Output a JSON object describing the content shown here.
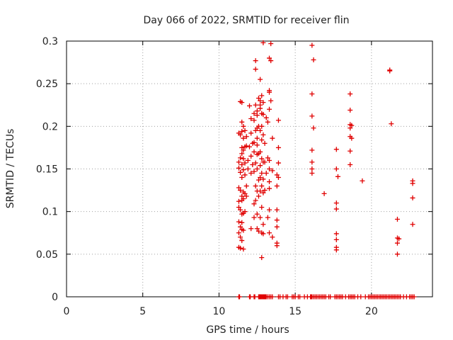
{
  "chart_data": {
    "type": "scatter",
    "title": "Day 066 of 2022, SRMTID for receiver flin",
    "xlabel": "GPS time / hours",
    "ylabel": "SRMTID / TECUs",
    "xlim": [
      0,
      24
    ],
    "ylim": [
      0,
      0.3
    ],
    "x_ticks": [
      0,
      5,
      10,
      15,
      20
    ],
    "y_ticks": [
      0,
      0.05,
      0.1,
      0.15,
      0.2,
      0.25,
      0.3
    ],
    "x_tick_labels": [
      "0",
      "5",
      "10",
      "15",
      "20"
    ],
    "y_tick_labels": [
      "0",
      "0.05",
      "0.1",
      "0.15",
      "0.2",
      "0.25",
      "0.3"
    ],
    "grid": true,
    "marker": "plus",
    "marker_color": "#e00000",
    "series": [
      {
        "name": "",
        "points": [
          [
            11.3,
            0.192
          ],
          [
            11.3,
            0.158
          ],
          [
            11.3,
            0.151
          ],
          [
            11.3,
            0.128
          ],
          [
            11.3,
            0.112
          ],
          [
            11.3,
            0.105
          ],
          [
            11.3,
            0.088
          ],
          [
            11.3,
            0.075
          ],
          [
            11.3,
            0.058
          ],
          [
            11.4,
            0.229
          ],
          [
            11.4,
            0.19
          ],
          [
            11.4,
            0.163
          ],
          [
            11.4,
            0.146
          ],
          [
            11.4,
            0.125
          ],
          [
            11.4,
            0.102
          ],
          [
            11.4,
            0.082
          ],
          [
            11.4,
            0.07
          ],
          [
            11.4,
            0.057
          ],
          [
            11.5,
            0.228
          ],
          [
            11.5,
            0.205
          ],
          [
            11.5,
            0.194
          ],
          [
            11.5,
            0.175
          ],
          [
            11.5,
            0.168
          ],
          [
            11.5,
            0.155
          ],
          [
            11.5,
            0.14
          ],
          [
            11.5,
            0.118
          ],
          [
            11.5,
            0.113
          ],
          [
            11.5,
            0.097
          ],
          [
            11.5,
            0.087
          ],
          [
            11.5,
            0.079
          ],
          [
            11.5,
            0.066
          ],
          [
            11.6,
            0.2
          ],
          [
            11.6,
            0.186
          ],
          [
            11.6,
            0.172
          ],
          [
            11.6,
            0.162
          ],
          [
            11.6,
            0.149
          ],
          [
            11.6,
            0.123
          ],
          [
            11.6,
            0.115
          ],
          [
            11.6,
            0.098
          ],
          [
            11.6,
            0.078
          ],
          [
            11.6,
            0.056
          ],
          [
            11.7,
            0.195
          ],
          [
            11.7,
            0.176
          ],
          [
            11.7,
            0.157
          ],
          [
            11.7,
            0.143
          ],
          [
            11.7,
            0.121
          ],
          [
            11.7,
            0.1
          ],
          [
            11.8,
            0.188
          ],
          [
            11.8,
            0.177
          ],
          [
            11.8,
            0.13
          ],
          [
            11.8,
            0.118
          ],
          [
            11.9,
            0.16
          ],
          [
            11.9,
            0.15
          ],
          [
            12.0,
            0.224
          ],
          [
            12.0,
            0.176
          ],
          [
            12.1,
            0.209
          ],
          [
            12.1,
            0.192
          ],
          [
            12.1,
            0.165
          ],
          [
            12.1,
            0.145
          ],
          [
            12.1,
            0.08
          ],
          [
            12.2,
            0.18
          ],
          [
            12.2,
            0.155
          ],
          [
            12.3,
            0.215
          ],
          [
            12.3,
            0.207
          ],
          [
            12.3,
            0.181
          ],
          [
            12.3,
            0.17
          ],
          [
            12.3,
            0.147
          ],
          [
            12.3,
            0.109
          ],
          [
            12.3,
            0.093
          ],
          [
            12.4,
            0.277
          ],
          [
            12.4,
            0.267
          ],
          [
            12.4,
            0.225
          ],
          [
            12.4,
            0.195
          ],
          [
            12.4,
            0.157
          ],
          [
            12.4,
            0.13
          ],
          [
            12.4,
            0.113
          ],
          [
            12.5,
            0.218
          ],
          [
            12.5,
            0.213
          ],
          [
            12.5,
            0.198
          ],
          [
            12.5,
            0.186
          ],
          [
            12.5,
            0.178
          ],
          [
            12.5,
            0.167
          ],
          [
            12.5,
            0.15
          ],
          [
            12.5,
            0.124
          ],
          [
            12.5,
            0.097
          ],
          [
            12.5,
            0.08
          ],
          [
            12.6,
            0.233
          ],
          [
            12.6,
            0.2
          ],
          [
            12.6,
            0.168
          ],
          [
            12.6,
            0.137
          ],
          [
            12.6,
            0.118
          ],
          [
            12.6,
            0.077
          ],
          [
            12.7,
            0.255
          ],
          [
            12.7,
            0.23
          ],
          [
            12.7,
            0.225
          ],
          [
            12.7,
            0.221
          ],
          [
            12.7,
            0.195
          ],
          [
            12.7,
            0.17
          ],
          [
            12.7,
            0.154
          ],
          [
            12.7,
            0.14
          ],
          [
            12.7,
            0.124
          ],
          [
            12.7,
            0.093
          ],
          [
            12.8,
            0.236
          ],
          [
            12.8,
            0.215
          ],
          [
            12.8,
            0.2
          ],
          [
            12.8,
            0.184
          ],
          [
            12.8,
            0.162
          ],
          [
            12.8,
            0.145
          ],
          [
            12.8,
            0.13
          ],
          [
            12.8,
            0.105
          ],
          [
            12.8,
            0.075
          ],
          [
            12.8,
            0.046
          ],
          [
            12.9,
            0.298
          ],
          [
            12.9,
            0.228
          ],
          [
            12.9,
            0.214
          ],
          [
            12.9,
            0.19
          ],
          [
            12.9,
            0.158
          ],
          [
            12.9,
            0.138
          ],
          [
            12.9,
            0.122
          ],
          [
            12.9,
            0.085
          ],
          [
            12.9,
            0.074
          ],
          [
            13.0,
            0.18
          ],
          [
            13.0,
            0.158
          ],
          [
            13.0,
            0.125
          ],
          [
            13.1,
            0.21
          ],
          [
            13.1,
            0.145
          ],
          [
            13.2,
            0.205
          ],
          [
            13.2,
            0.163
          ],
          [
            13.2,
            0.093
          ],
          [
            13.3,
            0.28
          ],
          [
            13.3,
            0.242
          ],
          [
            13.3,
            0.24
          ],
          [
            13.3,
            0.22
          ],
          [
            13.3,
            0.16
          ],
          [
            13.3,
            0.15
          ],
          [
            13.3,
            0.135
          ],
          [
            13.3,
            0.127
          ],
          [
            13.3,
            0.102
          ],
          [
            13.3,
            0.075
          ],
          [
            13.4,
            0.297
          ],
          [
            13.4,
            0.277
          ],
          [
            13.4,
            0.23
          ],
          [
            13.5,
            0.186
          ],
          [
            13.5,
            0.148
          ],
          [
            13.5,
            0.07
          ],
          [
            13.8,
            0.143
          ],
          [
            13.8,
            0.13
          ],
          [
            13.8,
            0.102
          ],
          [
            13.8,
            0.09
          ],
          [
            13.8,
            0.082
          ],
          [
            13.8,
            0.063
          ],
          [
            13.8,
            0.06
          ],
          [
            13.9,
            0.207
          ],
          [
            13.9,
            0.175
          ],
          [
            13.9,
            0.157
          ],
          [
            13.9,
            0.14
          ],
          [
            16.1,
            0.295
          ],
          [
            16.1,
            0.238
          ],
          [
            16.1,
            0.212
          ],
          [
            16.1,
            0.172
          ],
          [
            16.1,
            0.158
          ],
          [
            16.1,
            0.15
          ],
          [
            16.1,
            0.145
          ],
          [
            16.2,
            0.278
          ],
          [
            16.2,
            0.198
          ],
          [
            16.9,
            0.121
          ],
          [
            17.7,
            0.173
          ],
          [
            17.7,
            0.15
          ],
          [
            17.7,
            0.11
          ],
          [
            17.7,
            0.103
          ],
          [
            17.7,
            0.074
          ],
          [
            17.7,
            0.067
          ],
          [
            17.7,
            0.058
          ],
          [
            17.7,
            0.055
          ],
          [
            17.8,
            0.141
          ],
          [
            18.6,
            0.238
          ],
          [
            18.6,
            0.219
          ],
          [
            18.6,
            0.202
          ],
          [
            18.6,
            0.198
          ],
          [
            18.6,
            0.188
          ],
          [
            18.6,
            0.171
          ],
          [
            18.6,
            0.155
          ],
          [
            18.7,
            0.201
          ],
          [
            18.7,
            0.186
          ],
          [
            19.4,
            0.136
          ],
          [
            21.2,
            0.266
          ],
          [
            21.2,
            0.265
          ],
          [
            21.3,
            0.203
          ],
          [
            21.7,
            0.091
          ],
          [
            21.7,
            0.069
          ],
          [
            21.7,
            0.063
          ],
          [
            21.7,
            0.05
          ],
          [
            21.8,
            0.068
          ],
          [
            22.7,
            0.136
          ],
          [
            22.7,
            0.133
          ],
          [
            22.7,
            0.116
          ],
          [
            22.7,
            0.085
          ]
        ],
        "zero_x": [
          11.3,
          11.35,
          12.0,
          12.05,
          12.3,
          12.35,
          12.6,
          12.65,
          12.7,
          12.75,
          12.8,
          12.85,
          12.9,
          12.95,
          13.0,
          13.05,
          13.1,
          13.2,
          13.3,
          13.4,
          13.5,
          13.9,
          14.0,
          14.2,
          14.4,
          14.5,
          14.8,
          14.9,
          15.0,
          15.2,
          15.3,
          15.6,
          15.8,
          16.0,
          16.05,
          16.1,
          16.2,
          16.3,
          16.4,
          16.5,
          16.6,
          16.7,
          16.8,
          16.9,
          17.0,
          17.2,
          17.3,
          17.6,
          17.7,
          17.8,
          17.9,
          18.0,
          18.1,
          18.3,
          18.5,
          18.6,
          18.7,
          18.8,
          18.9,
          19.1,
          19.3,
          19.6,
          19.8,
          19.9,
          20.0,
          20.1,
          20.2,
          20.3,
          20.4,
          20.5,
          20.6,
          20.7,
          20.8,
          20.9,
          21.0,
          21.1,
          21.2,
          21.3,
          21.4,
          21.5,
          21.6,
          21.7,
          21.8,
          21.9,
          22.1,
          22.3,
          22.5,
          22.6,
          22.7,
          22.8
        ]
      }
    ]
  }
}
